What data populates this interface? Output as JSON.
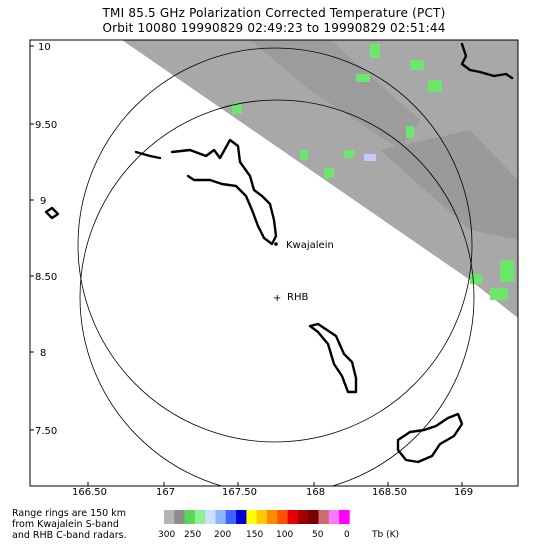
{
  "title": {
    "line1": "TMI 85.5 GHz Polarization Corrected Temperature (PCT)",
    "line2": "Orbit 10080 19990829 02:49:23 to 19990829 02:51:44"
  },
  "map": {
    "lon_ticks": [
      "166.50",
      "167",
      "167.50",
      "168",
      "168.50",
      "169"
    ],
    "lat_ticks": [
      "10",
      "9.50",
      "9",
      "8.50",
      "8",
      "7.50"
    ],
    "stations": {
      "kwajalein": "Kwajalein",
      "rhb": "RHB"
    },
    "rhb_marker": "+"
  },
  "footer_note": {
    "line1": "Range rings are 150 km",
    "line2": "from Kwajalein S-band",
    "line3": "and RHB C-band radars."
  },
  "legend": {
    "labels": [
      "300",
      "250",
      "200",
      "150",
      "100",
      "50",
      "0"
    ],
    "unit": "Tb (K)",
    "colors": [
      "#b4b4b4",
      "#8c8c8c",
      "#58d858",
      "#8ef08e",
      "#cce0ff",
      "#8cb4ff",
      "#3c64ff",
      "#0000d0",
      "#ffff00",
      "#ffc800",
      "#ff8c00",
      "#ff5000",
      "#e60000",
      "#a00000",
      "#780000",
      "#c86e6e",
      "#ff78ff",
      "#ff00ff"
    ]
  },
  "colors": {
    "swath": "#a8a8a8",
    "swath_dark": "#949494",
    "rain": "#6ee66e",
    "ice": "#c8c8ff"
  }
}
